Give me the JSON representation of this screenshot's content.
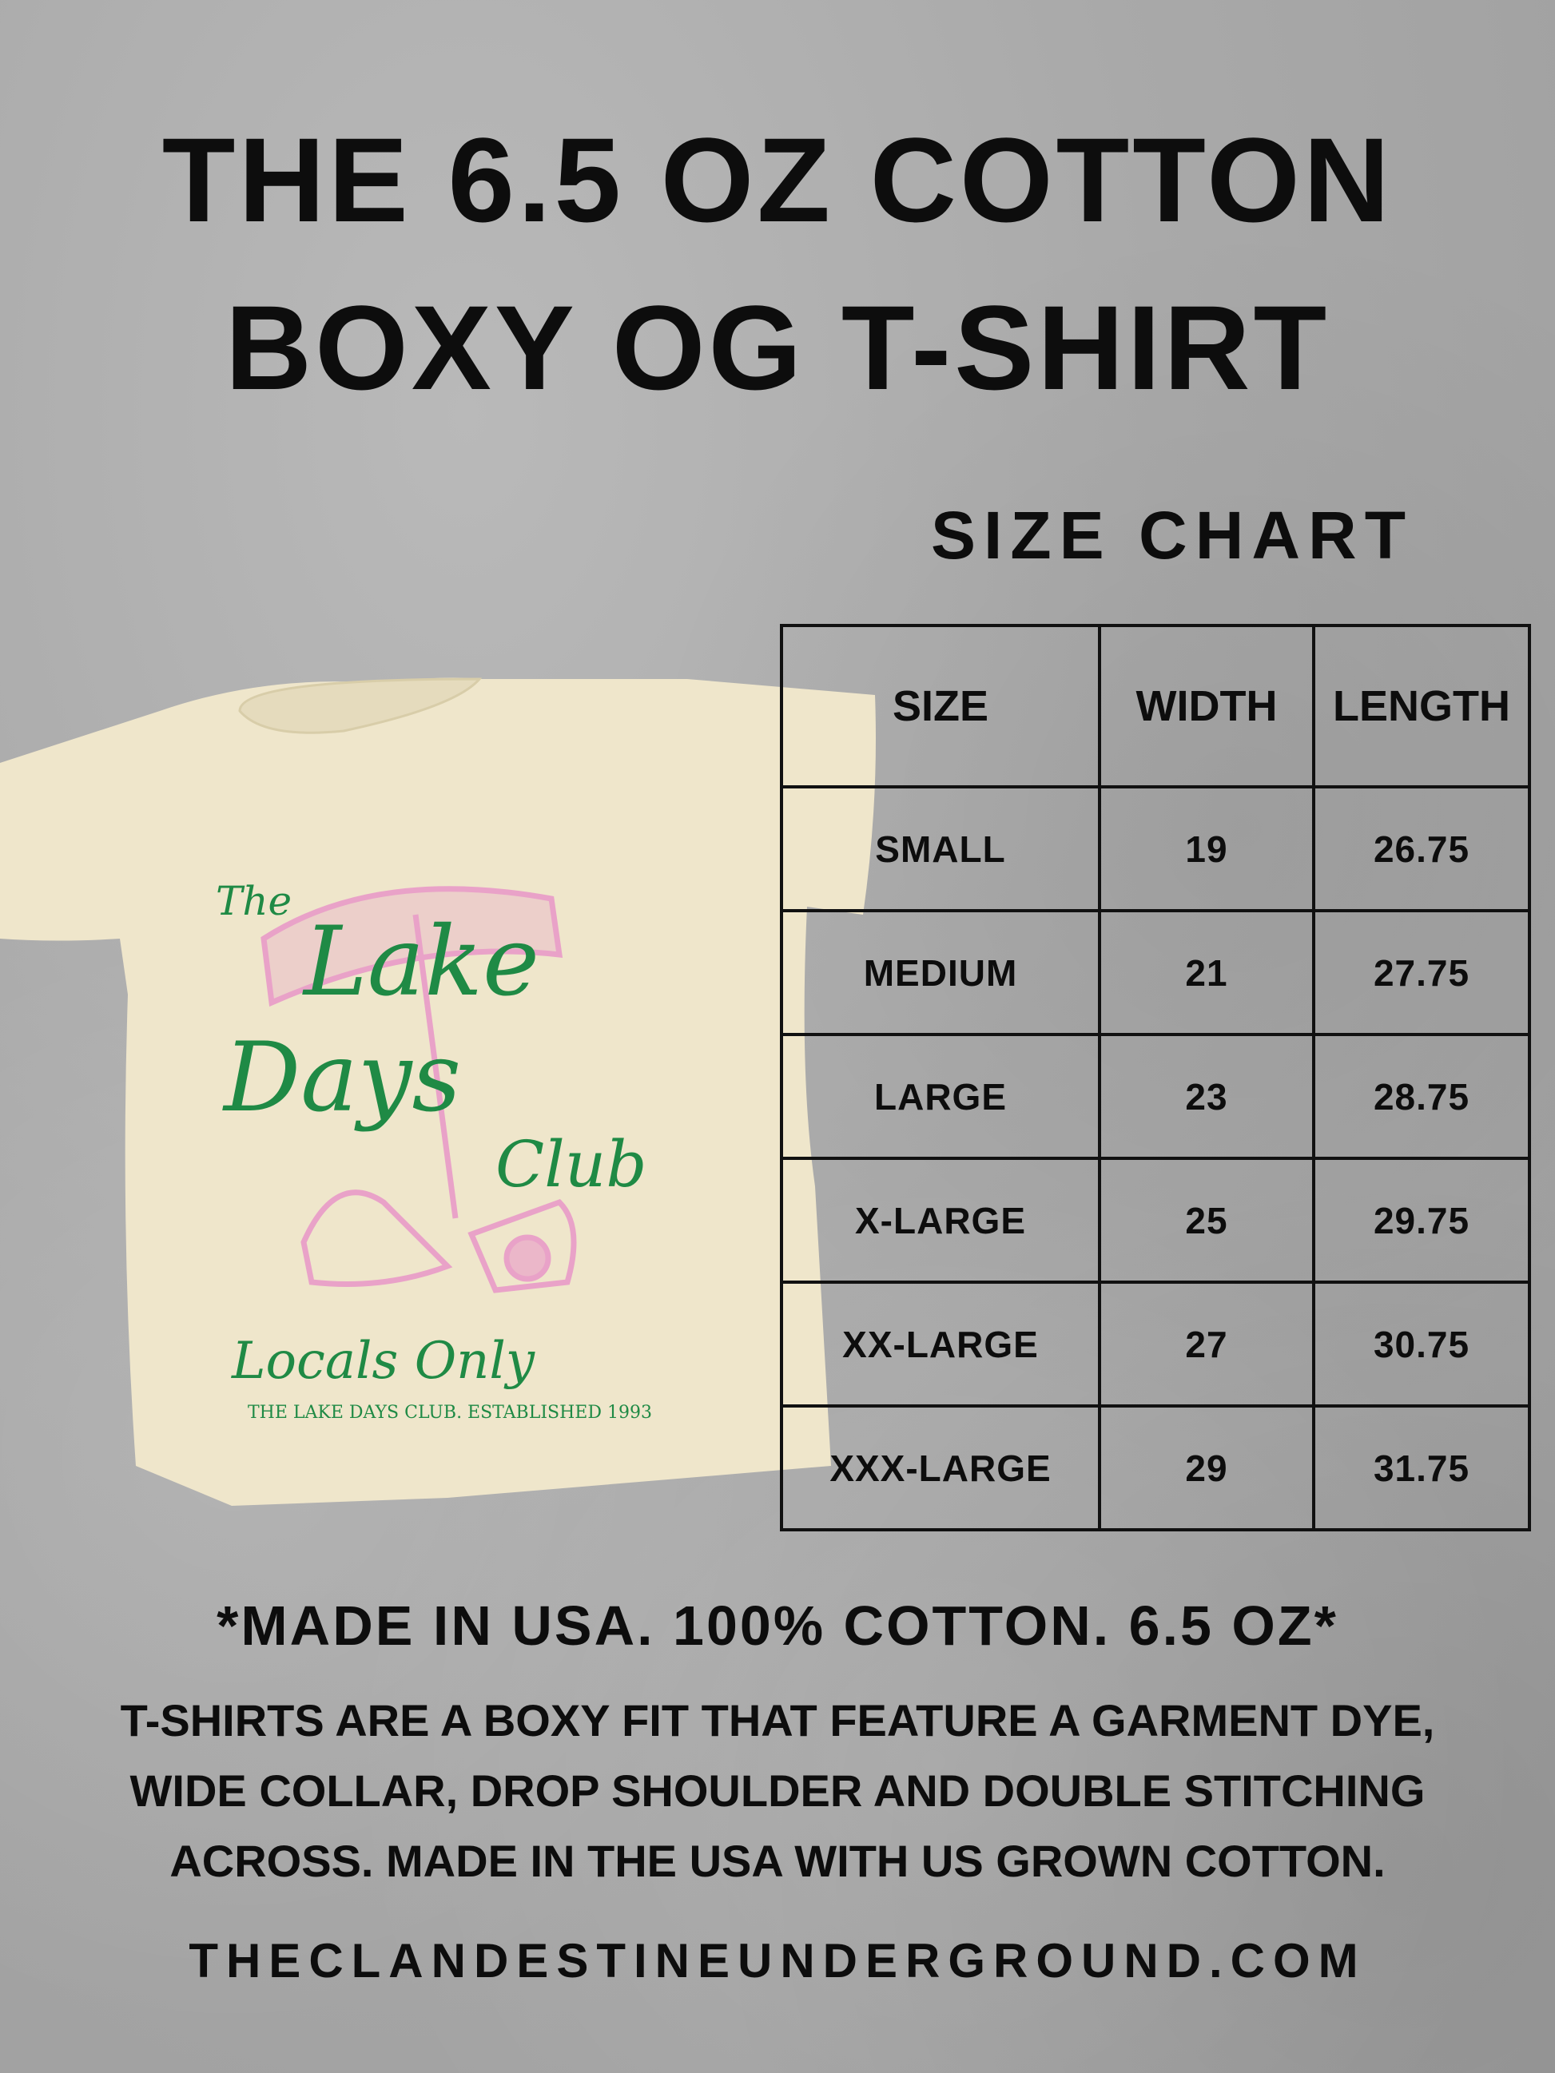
{
  "title": {
    "line1": "THE 6.5 OZ COTTON",
    "line2": "BOXY OG T-SHIRT"
  },
  "size_chart_heading": "SIZE CHART",
  "table": {
    "headers": [
      "SIZE",
      "WIDTH",
      "LENGTH"
    ],
    "rows": [
      [
        "SMALL",
        "19",
        "26.75"
      ],
      [
        "MEDIUM",
        "21",
        "27.75"
      ],
      [
        "LARGE",
        "23",
        "28.75"
      ],
      [
        "X-LARGE",
        "25",
        "29.75"
      ],
      [
        "XX-LARGE",
        "27",
        "30.75"
      ],
      [
        "XXX-LARGE",
        "29",
        "31.75"
      ]
    ]
  },
  "shirt_print": {
    "the": "The",
    "lake": "Lake",
    "days": "Days",
    "club": "Club",
    "locals": "Locals Only",
    "established": "THE LAKE DAYS CLUB. ESTABLISHED 1993"
  },
  "made_in": "*MADE IN USA. 100% COTTON. 6.5 OZ*",
  "description": [
    "T-SHIRTS ARE A BOXY  FIT THAT FEATURE A GARMENT DYE,",
    "WIDE COLLAR, DROP SHOULDER AND DOUBLE STITCHING",
    "ACROSS. MADE IN THE USA WITH US GROWN COTTON."
  ],
  "website": "THECLANDESTINEUNDERGROUND.COM",
  "colors": {
    "background": "#a9a9a9",
    "shirt": "#efe6cb",
    "print_green": "#1f8a45",
    "print_pink": "#e9a2c8",
    "text": "#0d0d0d"
  }
}
